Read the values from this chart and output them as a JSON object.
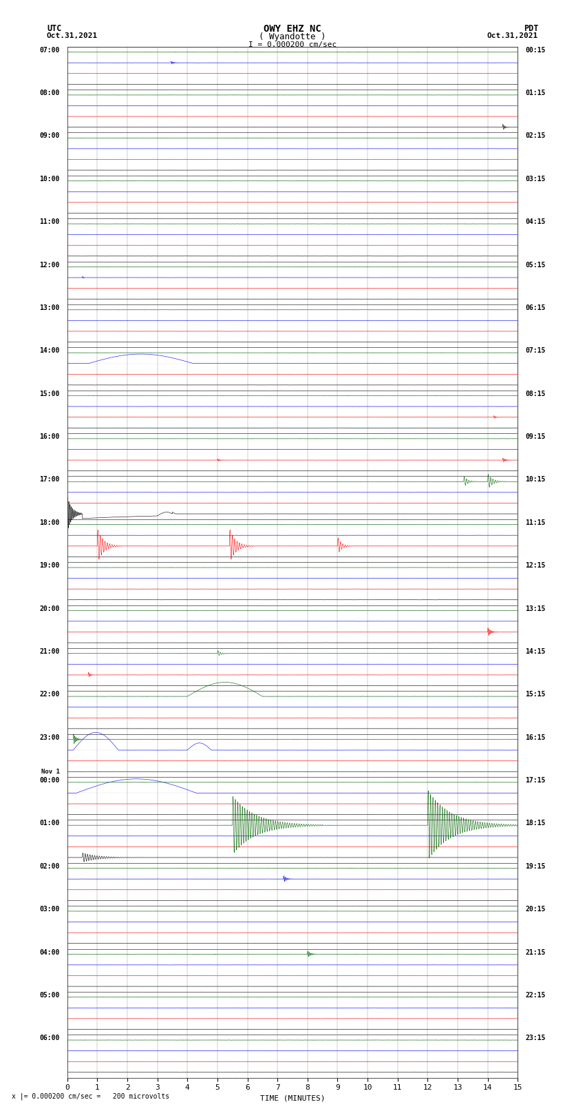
{
  "title_line1": "OWY EHZ NC",
  "title_line2": "( Wyandotte )",
  "scale_label": "I = 0.000200 cm/sec",
  "left_header_line1": "UTC",
  "left_header_line2": "Oct.31,2021",
  "right_header_line1": "PDT",
  "right_header_line2": "Oct.31,2021",
  "bottom_note": "x |= 0.000200 cm/sec =   200 microvolts",
  "xlabel": "TIME (MINUTES)",
  "xlim": [
    0,
    15
  ],
  "xticks": [
    0,
    1,
    2,
    3,
    4,
    5,
    6,
    7,
    8,
    9,
    10,
    11,
    12,
    13,
    14,
    15
  ],
  "num_rows": 24,
  "row_hours_utc": [
    "07:00",
    "08:00",
    "09:00",
    "10:00",
    "11:00",
    "12:00",
    "13:00",
    "14:00",
    "15:00",
    "16:00",
    "17:00",
    "18:00",
    "19:00",
    "20:00",
    "21:00",
    "22:00",
    "23:00",
    "Nov 1\n00:00",
    "01:00",
    "02:00",
    "03:00",
    "04:00",
    "05:00",
    "06:00"
  ],
  "row_hours_pdt": [
    "00:15",
    "01:15",
    "02:15",
    "03:15",
    "04:15",
    "05:15",
    "06:15",
    "07:15",
    "08:15",
    "09:15",
    "10:15",
    "11:15",
    "12:15",
    "13:15",
    "14:15",
    "15:15",
    "16:15",
    "17:15",
    "18:15",
    "19:15",
    "20:15",
    "21:15",
    "22:15",
    "23:15"
  ],
  "sub_colors": [
    "#000000",
    "#ff0000",
    "#0000ff",
    "#006400"
  ],
  "bg_color": "#ffffff",
  "grid_color": "#aaaaaa",
  "seed": 1234,
  "noise_amp": 0.006,
  "sub_offsets": [
    0.875,
    0.625,
    0.375,
    0.125
  ]
}
